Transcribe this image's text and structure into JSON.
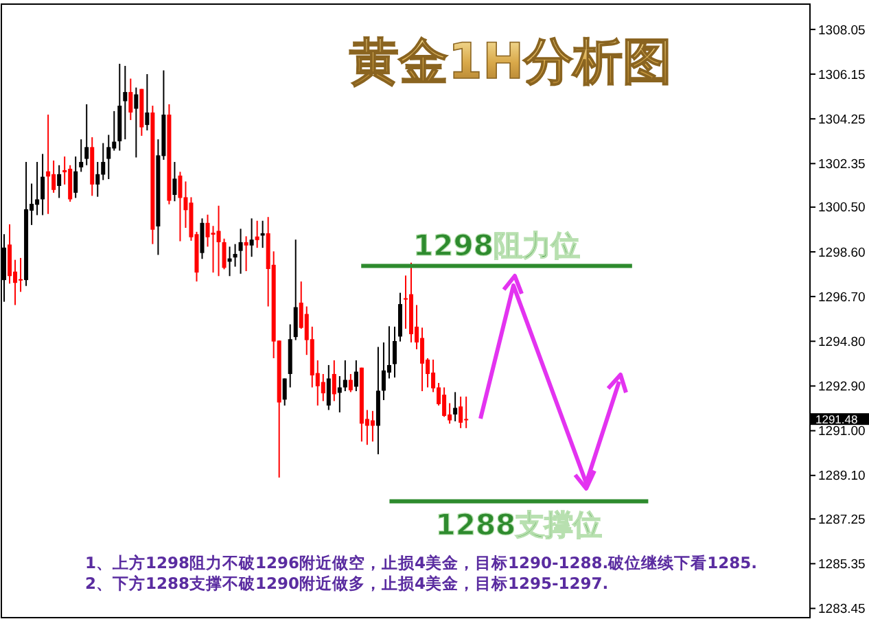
{
  "chart_data": {
    "type": "candlestick",
    "title": "黄金1H分析图",
    "categories": [
      null,
      null,
      null,
      null,
      null,
      null,
      null,
      null,
      null,
      null,
      null,
      null,
      null,
      null,
      null,
      null,
      null,
      null,
      null,
      null,
      null,
      null,
      null,
      null,
      null,
      null,
      null,
      null,
      null,
      null,
      null,
      null,
      null,
      null,
      null,
      null,
      null,
      null,
      null,
      null,
      null,
      null,
      null,
      null,
      null,
      null,
      null,
      null,
      null,
      null,
      null,
      null,
      null,
      null,
      null,
      null,
      null,
      null,
      null,
      null,
      null,
      null,
      null,
      null,
      null,
      null,
      null,
      null,
      null,
      null,
      null,
      null,
      null,
      null,
      null,
      null,
      null,
      null,
      null,
      null,
      null,
      null,
      null,
      null,
      null,
      null,
      null,
      null,
      null,
      null,
      null,
      null,
      null,
      null,
      null,
      null,
      null,
      null,
      null,
      null,
      null,
      null,
      null,
      null,
      null,
      null,
      null,
      null,
      null,
      null,
      null,
      null,
      null,
      null,
      null,
      null,
      null,
      null,
      null,
      null,
      null,
      null,
      null,
      null,
      null,
      null,
      null,
      null,
      null,
      null,
      null,
      null,
      null,
      null,
      null,
      null,
      null,
      null,
      null,
      null,
      null,
      null,
      null,
      null,
      null,
      null,
      null
    ],
    "ohlc": [
      [
        1297.4,
        1299.35,
        1296.48,
        1298.78
      ],
      [
        1298.91,
        1299.77,
        1297.25,
        1297.57
      ],
      [
        1297.76,
        1298.26,
        1296.34,
        1297.28
      ],
      [
        1297.44,
        1298.34,
        1296.9,
        1297.38
      ],
      [
        1297.4,
        1302.42,
        1297.15,
        1300.41
      ],
      [
        1300.35,
        1301.5,
        1299.74,
        1300.64
      ],
      [
        1300.6,
        1302.42,
        1300.16,
        1300.83
      ],
      [
        1300.83,
        1302.76,
        1300.16,
        1301.79
      ],
      [
        1302.02,
        1304.43,
        1300.21,
        1301.8
      ],
      [
        1301.9,
        1302.48,
        1301.11,
        1301.23
      ],
      [
        1301.4,
        1302.28,
        1300.89,
        1301.9
      ],
      [
        1302.07,
        1302.65,
        1301.46,
        1301.98
      ],
      [
        1302.13,
        1302.28,
        1300.73,
        1300.83
      ],
      [
        1301.11,
        1302.65,
        1300.89,
        1302.02
      ],
      [
        1302.19,
        1303.38,
        1302.0,
        1302.42
      ],
      [
        1302.55,
        1304.87,
        1302.28,
        1303.05
      ],
      [
        1303.05,
        1303.47,
        1300.98,
        1301.46
      ],
      [
        1301.46,
        1302.42,
        1300.94,
        1301.9
      ],
      [
        1301.88,
        1303.22,
        1301.65,
        1302.42
      ],
      [
        1302.55,
        1303.57,
        1301.69,
        1303.05
      ],
      [
        1302.99,
        1304.58,
        1302.9,
        1303.28
      ],
      [
        1303.3,
        1306.59,
        1302.9,
        1304.81
      ],
      [
        1305.0,
        1306.5,
        1303.38,
        1305.39
      ],
      [
        1305.39,
        1305.96,
        1304.2,
        1304.52
      ],
      [
        1304.68,
        1305.58,
        1302.61,
        1305.29
      ],
      [
        1305.52,
        1305.52,
        1303.53,
        1303.89
      ],
      [
        1303.99,
        1306.15,
        1303.76,
        1304.52
      ],
      [
        1304.52,
        1304.81,
        1298.93,
        1299.54
      ],
      [
        1299.68,
        1303.38,
        1298.47,
        1302.7
      ],
      [
        1302.67,
        1306.31,
        1302.51,
        1304.43
      ],
      [
        1304.43,
        1304.87,
        1300.62,
        1300.77
      ],
      [
        1301.02,
        1302.42,
        1300.75,
        1301.71
      ],
      [
        1301.84,
        1302.0,
        1299.05,
        1300.89
      ],
      [
        1300.92,
        1301.59,
        1299.62,
        1300.37
      ],
      [
        1300.69,
        1300.92,
        1299.07,
        1299.22
      ],
      [
        1299.35,
        1299.45,
        1297.34,
        1297.72
      ],
      [
        1298.55,
        1300.02,
        1298.3,
        1299.83
      ],
      [
        1299.83,
        1300.18,
        1298.82,
        1299.22
      ],
      [
        1299.41,
        1299.7,
        1297.72,
        1299.33
      ],
      [
        1299.49,
        1300.56,
        1297.57,
        1299.01
      ],
      [
        1299.01,
        1299.16,
        1297.86,
        1297.92
      ],
      [
        1298.18,
        1298.82,
        1297.57,
        1298.32
      ],
      [
        1298.36,
        1298.93,
        1297.97,
        1298.51
      ],
      [
        1298.64,
        1299.58,
        1297.67,
        1299.01
      ],
      [
        1299.01,
        1299.26,
        1297.78,
        1298.87
      ],
      [
        1298.87,
        1300.02,
        1298.39,
        1299.12
      ],
      [
        1299.25,
        1299.92,
        1298.77,
        1299.1
      ],
      [
        1299.29,
        1299.92,
        1298.77,
        1299.39
      ],
      [
        1299.39,
        1300.08,
        1296.28,
        1297.87
      ],
      [
        1298.05,
        1298.62,
        1294.08,
        1294.79
      ],
      [
        1294.83,
        1294.83,
        1289.01,
        1292.2
      ],
      [
        1292.32,
        1293.22,
        1292.07,
        1293.22
      ],
      [
        1293.41,
        1295.52,
        1292.84,
        1294.89
      ],
      [
        1294.98,
        1299.12,
        1294.85,
        1296.25
      ],
      [
        1296.44,
        1297.34,
        1295.33,
        1295.37
      ],
      [
        1295.96,
        1296.28,
        1294.22,
        1294.85
      ],
      [
        1294.89,
        1295.42,
        1292.84,
        1293.35
      ],
      [
        1293.45,
        1293.99,
        1292.07,
        1292.89
      ],
      [
        1293.07,
        1293.41,
        1292.26,
        1292.59
      ],
      [
        1292.07,
        1293.79,
        1291.88,
        1293.22
      ],
      [
        1293.41,
        1293.99,
        1292.26,
        1292.55
      ],
      [
        1292.61,
        1293.32,
        1291.78,
        1292.84
      ],
      [
        1292.84,
        1293.99,
        1292.68,
        1293.16
      ],
      [
        1293.16,
        1293.41,
        1292.64,
        1292.72
      ],
      [
        1292.87,
        1293.99,
        1292.68,
        1293.51
      ],
      [
        1293.68,
        1293.68,
        1290.54,
        1291.3
      ],
      [
        1291.5,
        1291.88,
        1290.4,
        1291.21
      ],
      [
        1291.44,
        1291.84,
        1290.54,
        1291.21
      ],
      [
        1291.21,
        1294.56,
        1290.0,
        1292.7
      ],
      [
        1292.7,
        1294.75,
        1292.3,
        1293.56
      ],
      [
        1293.47,
        1295.44,
        1293.22,
        1293.79
      ],
      [
        1293.83,
        1295.42,
        1293.26,
        1294.81
      ],
      [
        1295.0,
        1296.86,
        1294.79,
        1296.38
      ],
      [
        1296.63,
        1297.59,
        1295.33,
        1296.57
      ],
      [
        1296.8,
        1298.14,
        1294.75,
        1295.1
      ],
      [
        1295.42,
        1296.34,
        1294.46,
        1294.75
      ],
      [
        1294.94,
        1295.38,
        1292.68,
        1293.85
      ],
      [
        1294.02,
        1294.08,
        1292.84,
        1293.41
      ],
      [
        1293.47,
        1294.02,
        1292.64,
        1292.8
      ],
      [
        1292.84,
        1293.03,
        1292.07,
        1292.13
      ],
      [
        1292.53,
        1292.84,
        1291.59,
        1291.63
      ],
      [
        1291.69,
        1292.17,
        1291.3,
        1291.44
      ],
      [
        1291.69,
        1292.64,
        1291.4,
        1291.97
      ],
      [
        1292.03,
        1292.45,
        1291.11,
        1291.34
      ],
      [
        1291.5,
        1292.45,
        1291.11,
        1291.48
      ],
      null,
      null,
      null,
      null,
      null,
      null,
      null,
      null,
      null,
      null,
      null,
      null,
      null,
      null,
      null,
      null,
      null,
      null,
      null,
      null,
      null,
      null,
      null,
      null,
      null,
      null,
      null,
      null,
      null,
      null,
      null,
      null,
      null,
      null,
      null,
      null,
      null,
      null,
      null,
      null,
      null,
      null,
      null,
      null,
      null,
      null,
      null,
      null,
      null,
      null,
      null,
      null,
      null,
      null,
      null,
      null,
      null,
      null,
      null,
      null,
      null,
      null
    ],
    "colors": [
      "#000000",
      "#ff0000",
      "#ff0000",
      "#ff0000",
      "#000000",
      "#000000",
      "#000000",
      "#000000",
      "#ff0000",
      "#ff0000",
      "#000000",
      "#ff0000",
      "#ff0000",
      "#000000",
      "#000000",
      "#000000",
      "#ff0000",
      "#000000",
      "#000000",
      "#000000",
      "#000000",
      "#000000",
      "#000000",
      "#ff0000",
      "#000000",
      "#ff0000",
      "#000000",
      "#ff0000",
      "#000000",
      "#000000",
      "#ff0000",
      "#000000",
      "#ff0000",
      "#ff0000",
      "#ff0000",
      "#ff0000",
      "#000000",
      "#ff0000",
      "#ff0000",
      "#ff0000",
      "#ff0000",
      "#000000",
      "#000000",
      "#000000",
      "#ff0000",
      "#000000",
      "#ff0000",
      "#000000",
      "#ff0000",
      "#ff0000",
      "#ff0000",
      "#000000",
      "#000000",
      "#000000",
      "#ff0000",
      "#ff0000",
      "#ff0000",
      "#ff0000",
      "#ff0000",
      "#000000",
      "#ff0000",
      "#000000",
      "#000000",
      "#ff0000",
      "#000000",
      "#ff0000",
      "#ff0000",
      "#ff0000",
      "#000000",
      "#000000",
      "#000000",
      "#000000",
      "#000000",
      "#ff0000",
      "#ff0000",
      "#ff0000",
      "#ff0000",
      "#ff0000",
      "#ff0000",
      "#ff0000",
      "#ff0000",
      "#ff0000",
      "#000000",
      "#ff0000",
      "#ff0000",
      null,
      null,
      null,
      null,
      null,
      null,
      null,
      null,
      null,
      null,
      null,
      null,
      null,
      null,
      null,
      null,
      null,
      null,
      null,
      null,
      null,
      null,
      null,
      null,
      null,
      null,
      null,
      null,
      null,
      null,
      null,
      null,
      null,
      null,
      null,
      null,
      null,
      null,
      null,
      null,
      null,
      null,
      null,
      null,
      null,
      null,
      null,
      null,
      null,
      null,
      null,
      null,
      null,
      null,
      null,
      null,
      null,
      null,
      null,
      null,
      null,
      null
    ],
    "ylim": [
      1283.0,
      1309.3
    ],
    "yticks": [
      {
        "value": 1308.05,
        "label": "1308.05"
      },
      {
        "value": 1306.15,
        "label": "1306.15"
      },
      {
        "value": 1304.25,
        "label": "1304.25"
      },
      {
        "value": 1302.35,
        "label": "1302.35"
      },
      {
        "value": 1300.5,
        "label": "1300.50"
      },
      {
        "value": 1298.6,
        "label": "1298.60"
      },
      {
        "value": 1296.7,
        "label": "1296.70"
      },
      {
        "value": 1294.8,
        "label": "1294.80"
      },
      {
        "value": 1292.9,
        "label": "1292.90"
      },
      {
        "value": 1291.0,
        "label": "1291.00"
      },
      {
        "value": 1289.1,
        "label": "1289.10"
      },
      {
        "value": 1287.25,
        "label": "1287.25"
      },
      {
        "value": 1285.35,
        "label": "1285.35"
      },
      {
        "value": 1283.45,
        "label": "1283.45"
      }
    ],
    "tick_labels": "y",
    "ref_lines": [
      {
        "axis": "y",
        "value": 1298,
        "label": "1298阻力位",
        "color": "#2e8b2e"
      },
      {
        "axis": "y",
        "value": 1288,
        "label": "1288支撑位",
        "color": "#2e8b2e"
      }
    ],
    "annotations": [
      "1、上方1298阻力不破1296附近做空，止损4美金，目标1290-1288.破位继续下看1285.",
      "2、下方1288支撑不破1290附近做多，止损4美金，目标1295-1297.",
      "1291.48"
    ]
  }
}
